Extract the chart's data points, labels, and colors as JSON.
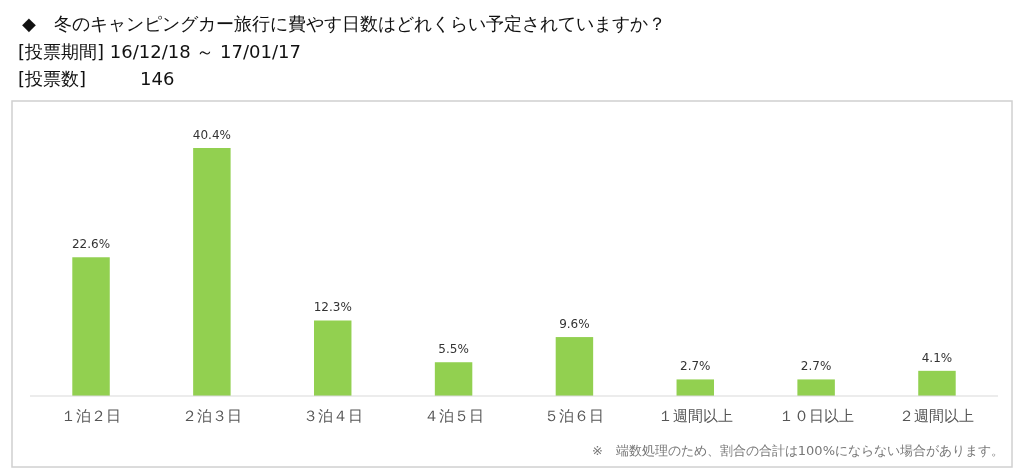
{
  "chart_data": {
    "type": "bar",
    "title": "◆　冬のキャンピングカー旅行に費やす日数はどれくらい予定されていますか？",
    "subtitle": "[投票期間] 16/12/18 ～ 17/01/17",
    "annotations": [
      "[投票数]　　　146",
      "※　端数処理のため、割合の合計は100%にならない場合があります。"
    ],
    "categories": [
      "１泊２日",
      "２泊３日",
      "３泊４日",
      "４泊５日",
      "５泊６日",
      "１週間以上",
      "１０日以上",
      "２週間以上"
    ],
    "values": [
      22.6,
      40.4,
      12.3,
      5.5,
      9.6,
      2.7,
      2.7,
      4.1
    ],
    "value_labels": [
      "22.6%",
      "40.4%",
      "12.3%",
      "5.5%",
      "9.6%",
      "2.7%",
      "2.7%",
      "4.1%"
    ],
    "color": "#92d050"
  }
}
